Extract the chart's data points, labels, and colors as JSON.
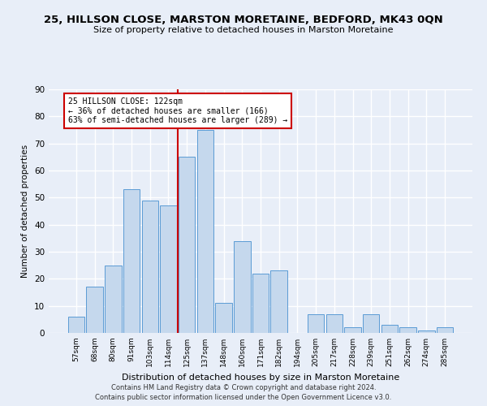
{
  "title": "25, HILLSON CLOSE, MARSTON MORETAINE, BEDFORD, MK43 0QN",
  "subtitle": "Size of property relative to detached houses in Marston Moretaine",
  "xlabel": "Distribution of detached houses by size in Marston Moretaine",
  "ylabel": "Number of detached properties",
  "footer_line1": "Contains HM Land Registry data © Crown copyright and database right 2024.",
  "footer_line2": "Contains public sector information licensed under the Open Government Licence v3.0.",
  "categories": [
    "57sqm",
    "68sqm",
    "80sqm",
    "91sqm",
    "103sqm",
    "114sqm",
    "125sqm",
    "137sqm",
    "148sqm",
    "160sqm",
    "171sqm",
    "182sqm",
    "194sqm",
    "205sqm",
    "217sqm",
    "228sqm",
    "239sqm",
    "251sqm",
    "262sqm",
    "274sqm",
    "285sqm"
  ],
  "values": [
    6,
    17,
    25,
    53,
    49,
    47,
    65,
    75,
    11,
    34,
    22,
    23,
    0,
    7,
    7,
    2,
    7,
    3,
    2,
    1,
    2
  ],
  "bar_color": "#c5d8ed",
  "bar_edge_color": "#5b9bd5",
  "marker_bin_index": 6,
  "marker_label": "25 HILLSON CLOSE: 122sqm",
  "marker_smaller": "← 36% of detached houses are smaller (166)",
  "marker_larger": "63% of semi-detached houses are larger (289) →",
  "marker_color": "#cc0000",
  "ylim": [
    0,
    90
  ],
  "yticks": [
    0,
    10,
    20,
    30,
    40,
    50,
    60,
    70,
    80,
    90
  ],
  "bar_color_light": "#eef3fa",
  "bg_color": "#e8eef8",
  "grid_color": "#ffffff",
  "fig_bg": "#e8eef8"
}
